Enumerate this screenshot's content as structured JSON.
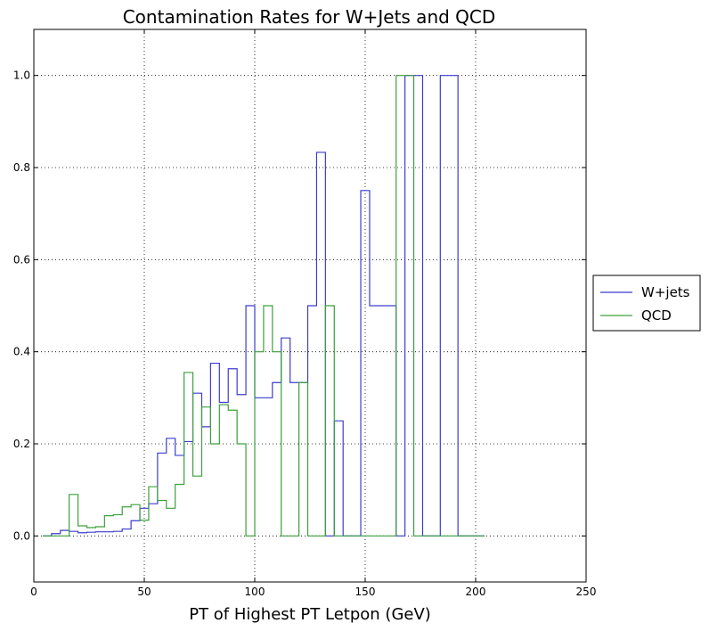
{
  "chart_data": {
    "type": "line",
    "title": "Contamination Rates for W+Jets and QCD",
    "xlabel": "PT of Highest PT Letpon (GeV)",
    "ylabel": "",
    "xlim": [
      0,
      250
    ],
    "ylim": [
      -0.1,
      1.1
    ],
    "xticks": [
      0,
      50,
      100,
      150,
      200,
      250
    ],
    "yticks": [
      0.0,
      0.2,
      0.4,
      0.6,
      0.8,
      1.0
    ],
    "xtick_labels": [
      "0",
      "50",
      "100",
      "150",
      "200",
      "250"
    ],
    "ytick_labels": [
      "0.0",
      "0.2",
      "0.4",
      "0.6",
      "0.8",
      "1.0"
    ],
    "grid": true,
    "legend_position": "center-right outside",
    "bin_edges": [
      4,
      8,
      12,
      16,
      20,
      24,
      28,
      32,
      36,
      40,
      44,
      48,
      52,
      56,
      60,
      64,
      68,
      72,
      76,
      80,
      84,
      88,
      92,
      96,
      100,
      104,
      108,
      112,
      116,
      120,
      124,
      128,
      132,
      136,
      140,
      144,
      148,
      152,
      156,
      160,
      164,
      168,
      172,
      176,
      180,
      184,
      188,
      192,
      196,
      200,
      204
    ],
    "series": [
      {
        "name": "W+jets",
        "color": "#3d3dce",
        "values": [
          0.0,
          0.005,
          0.012,
          0.01,
          0.007,
          0.008,
          0.009,
          0.009,
          0.01,
          0.015,
          0.033,
          0.06,
          0.07,
          0.18,
          0.212,
          0.175,
          0.205,
          0.31,
          0.237,
          0.375,
          0.29,
          0.363,
          0.307,
          0.5,
          0.3,
          0.3,
          0.333,
          0.43,
          0.333,
          0.333,
          0.5,
          0.833,
          0.0,
          0.25,
          0.0,
          0.0,
          0.75,
          0.5,
          0.5,
          0.5,
          0.0,
          1.0,
          1.0,
          0.0,
          0.0,
          1.0,
          1.0,
          0.0,
          0.0,
          0.0
        ]
      },
      {
        "name": "QCD",
        "color": "#3ca03c",
        "values": [
          0.0,
          0.0,
          0.0,
          0.09,
          0.022,
          0.018,
          0.02,
          0.044,
          0.046,
          0.063,
          0.068,
          0.034,
          0.107,
          0.077,
          0.06,
          0.112,
          0.355,
          0.13,
          0.28,
          0.2,
          0.285,
          0.273,
          0.2,
          0.0,
          0.4,
          0.5,
          0.4,
          0.0,
          0.0,
          0.333,
          0.0,
          0.0,
          0.5,
          0.0,
          0.0,
          0.0,
          0.0,
          0.0,
          0.0,
          0.0,
          1.0,
          1.0,
          0.0,
          0.0,
          0.0,
          0.0,
          0.0,
          0.0,
          0.0,
          0.0
        ]
      }
    ]
  }
}
